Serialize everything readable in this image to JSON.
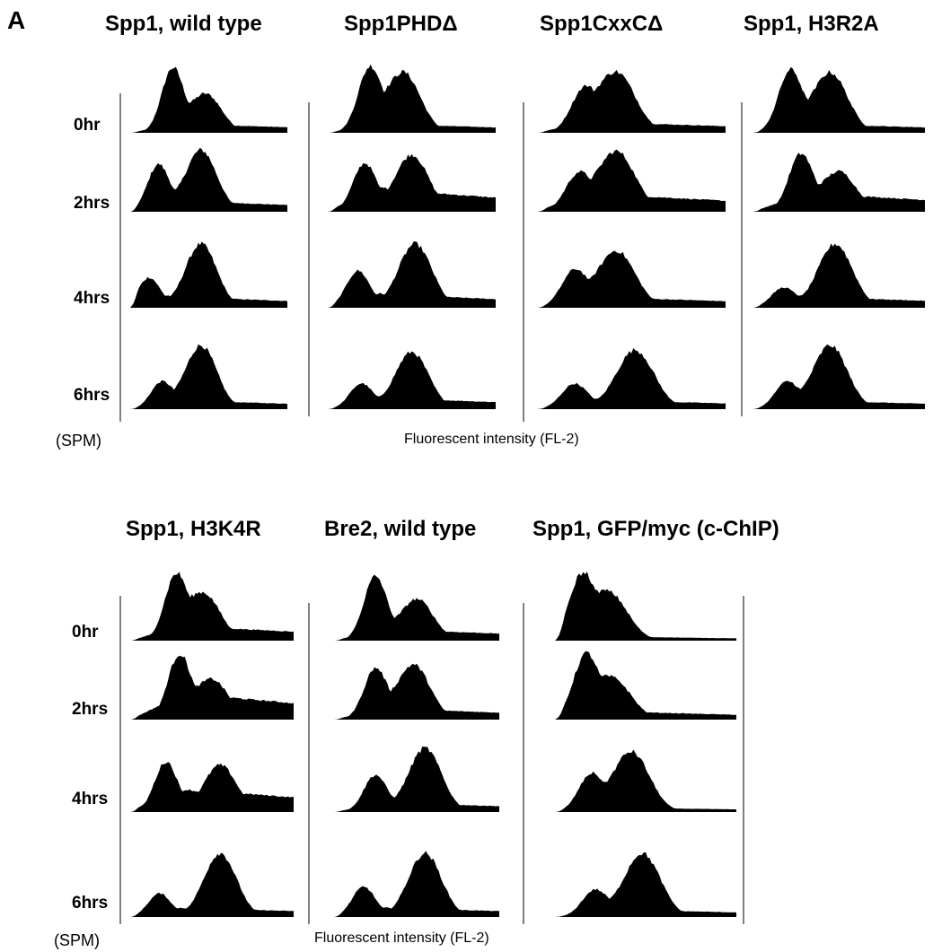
{
  "panel_label": "A",
  "top_block": {
    "columns": [
      "Spp1, wild type",
      "Spp1PHDΔ",
      "Spp1CxxCΔ",
      "Spp1, H3R2A"
    ],
    "rows": [
      "0hr",
      "2hrs",
      "4hrs",
      "6hrs"
    ],
    "unit_label": "(SPM)",
    "xlabel": "Fluorescent intensity (FL-2)"
  },
  "bottom_block": {
    "columns": [
      "Spp1, H3K4R",
      "Bre2, wild type",
      "Spp1, GFP/myc (c-ChIP)"
    ],
    "rows": [
      "0hr",
      "2hrs",
      "4hrs",
      "6hrs"
    ],
    "unit_label": "(SPM)",
    "xlabel": "Fluorescent intensity (FL-2)"
  },
  "chart_data": {
    "type": "area",
    "x_axis": "Fluorescent intensity (FL-2)",
    "grid": false,
    "panels": [
      {
        "column": "Spp1, wild type",
        "series": [
          {
            "name": "0hr",
            "peak1": 0.27,
            "peak2": 0.48,
            "h1": 0.95,
            "h2": 0.58,
            "tail": 0.12
          },
          {
            "name": "2hrs",
            "peak1": 0.18,
            "peak2": 0.45,
            "h1": 0.7,
            "h2": 0.92,
            "tail": 0.15
          },
          {
            "name": "4hrs",
            "peak1": 0.12,
            "peak2": 0.45,
            "h1": 0.45,
            "h2": 0.95,
            "tail": 0.15
          },
          {
            "name": "6hrs",
            "peak1": 0.2,
            "peak2": 0.45,
            "h1": 0.4,
            "h2": 0.95,
            "tail": 0.12
          }
        ]
      },
      {
        "column": "Spp1PHDΔ",
        "series": [
          {
            "name": "0hr",
            "peak1": 0.25,
            "peak2": 0.45,
            "h1": 0.95,
            "h2": 0.9,
            "tail": 0.12
          },
          {
            "name": "2hrs",
            "peak1": 0.22,
            "peak2": 0.5,
            "h1": 0.72,
            "h2": 0.85,
            "tail": 0.3
          },
          {
            "name": "4hrs",
            "peak1": 0.18,
            "peak2": 0.52,
            "h1": 0.55,
            "h2": 0.95,
            "tail": 0.18
          },
          {
            "name": "6hrs",
            "peak1": 0.2,
            "peak2": 0.5,
            "h1": 0.38,
            "h2": 0.85,
            "tail": 0.15
          }
        ]
      },
      {
        "column": "Spp1CxxCΔ",
        "series": [
          {
            "name": "0hr",
            "peak1": 0.25,
            "peak2": 0.42,
            "h1": 0.62,
            "h2": 0.9,
            "tail": 0.15
          },
          {
            "name": "2hrs",
            "peak1": 0.22,
            "peak2": 0.42,
            "h1": 0.55,
            "h2": 0.9,
            "tail": 0.25
          },
          {
            "name": "4hrs",
            "peak1": 0.2,
            "peak2": 0.42,
            "h1": 0.55,
            "h2": 0.85,
            "tail": 0.15
          },
          {
            "name": "6hrs",
            "peak1": 0.2,
            "peak2": 0.52,
            "h1": 0.38,
            "h2": 0.88,
            "tail": 0.12
          }
        ]
      },
      {
        "column": "Spp1, H3R2A",
        "series": [
          {
            "name": "0hr",
            "peak1": 0.22,
            "peak2": 0.45,
            "h1": 0.92,
            "h2": 0.9,
            "tail": 0.12
          },
          {
            "name": "2hrs",
            "peak1": 0.28,
            "peak2": 0.5,
            "h1": 0.85,
            "h2": 0.6,
            "tail": 0.25
          },
          {
            "name": "4hrs",
            "peak1": 0.18,
            "peak2": 0.48,
            "h1": 0.3,
            "h2": 0.95,
            "tail": 0.15
          },
          {
            "name": "6hrs",
            "peak1": 0.2,
            "peak2": 0.45,
            "h1": 0.4,
            "h2": 0.95,
            "tail": 0.12
          }
        ]
      },
      {
        "column": "Spp1, H3K4R",
        "series": [
          {
            "name": "0hr",
            "peak1": 0.28,
            "peak2": 0.45,
            "h1": 0.95,
            "h2": 0.7,
            "tail": 0.2
          },
          {
            "name": "2hrs",
            "peak1": 0.3,
            "peak2": 0.5,
            "h1": 0.95,
            "h2": 0.6,
            "tail": 0.35
          },
          {
            "name": "4hrs",
            "peak1": 0.22,
            "peak2": 0.55,
            "h1": 0.75,
            "h2": 0.7,
            "tail": 0.3
          },
          {
            "name": "6hrs",
            "peak1": 0.18,
            "peak2": 0.55,
            "h1": 0.35,
            "h2": 0.95,
            "tail": 0.12
          }
        ]
      },
      {
        "column": "Bre2, wild type",
        "series": [
          {
            "name": "0hr",
            "peak1": 0.25,
            "peak2": 0.5,
            "h1": 0.95,
            "h2": 0.62,
            "tail": 0.15
          },
          {
            "name": "2hrs",
            "peak1": 0.25,
            "peak2": 0.48,
            "h1": 0.75,
            "h2": 0.82,
            "tail": 0.15
          },
          {
            "name": "4hrs",
            "peak1": 0.25,
            "peak2": 0.55,
            "h1": 0.55,
            "h2": 0.95,
            "tail": 0.12
          },
          {
            "name": "6hrs",
            "peak1": 0.18,
            "peak2": 0.55,
            "h1": 0.45,
            "h2": 0.95,
            "tail": 0.12
          }
        ]
      },
      {
        "column": "Spp1, GFP/myc (c-ChIP)",
        "series": [
          {
            "name": "0hr",
            "peak1": 0.15,
            "peak2": 0.3,
            "h1": 0.95,
            "h2": 0.7,
            "tail": 0.06
          },
          {
            "name": "2hrs",
            "peak1": 0.17,
            "peak2": 0.32,
            "h1": 0.92,
            "h2": 0.6,
            "tail": 0.12
          },
          {
            "name": "4hrs",
            "peak1": 0.2,
            "peak2": 0.42,
            "h1": 0.55,
            "h2": 0.9,
            "tail": 0.06
          },
          {
            "name": "6hrs",
            "peak1": 0.22,
            "peak2": 0.48,
            "h1": 0.4,
            "h2": 0.95,
            "tail": 0.1
          }
        ]
      }
    ]
  }
}
